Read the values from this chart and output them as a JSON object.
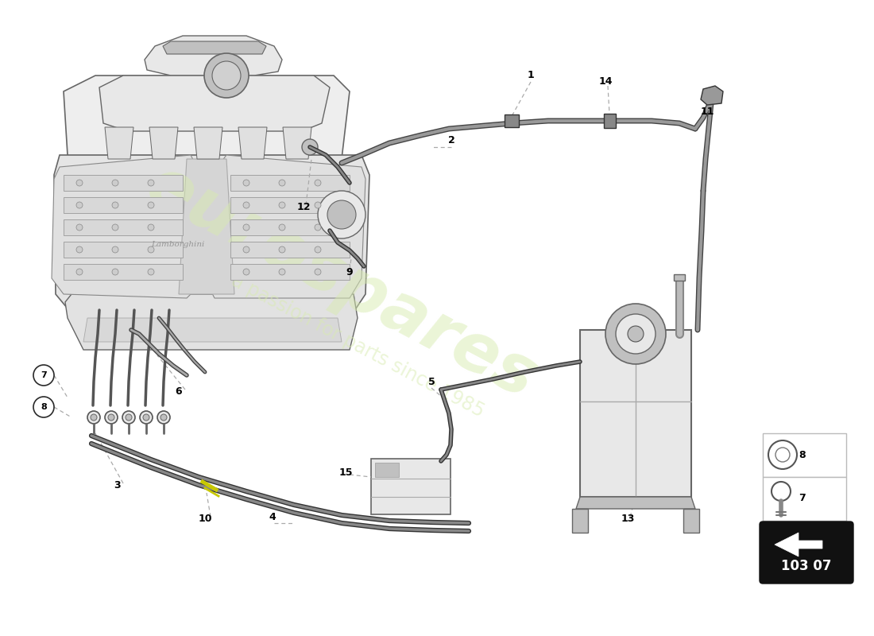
{
  "background_color": "#ffffff",
  "watermark_text": "eurospares",
  "watermark_subtext": "a passion for parts since 1985",
  "watermark_color": "#d8ebb0",
  "badge_text": "103 07",
  "line_color": "#2a2a2a",
  "light_gray": "#e8e8e8",
  "mid_gray": "#c0c0c0",
  "dark_gray": "#666666",
  "engine_bg": "#f2f2f2"
}
